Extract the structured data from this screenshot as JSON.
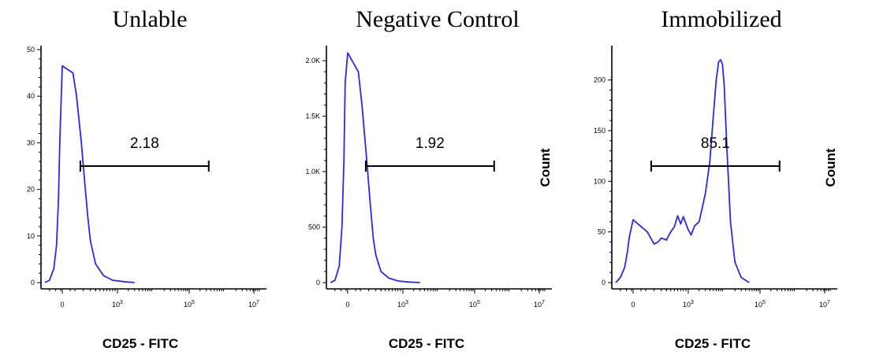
{
  "chart_data": [
    {
      "type": "line",
      "title": "Unlable",
      "xlabel": "CD25 - FITC",
      "ylabel": "",
      "ylim": [
        0,
        50
      ],
      "y_ticks": [
        "0",
        "10",
        "20",
        "30",
        "40",
        "50"
      ],
      "x_ticks": [
        "0",
        "10^3",
        "10^5",
        "10^7"
      ],
      "gate": {
        "label": "2.18",
        "x_from": 70,
        "x_to": 350000
      },
      "series": [
        {
          "x": [
            -500,
            -300,
            -150,
            -80,
            -40,
            -20,
            0,
            20,
            40,
            80,
            120,
            160,
            200,
            300,
            500,
            800,
            1500,
            3000
          ],
          "y": [
            0,
            0.5,
            3,
            8,
            18,
            30,
            46.5,
            45,
            40,
            30,
            21,
            14,
            9,
            4,
            1.5,
            0.5,
            0.2,
            0
          ]
        }
      ]
    },
    {
      "type": "line",
      "title": "Negative Control",
      "xlabel": "CD25 - FITC",
      "ylabel": "Count",
      "ylim": [
        0,
        2100
      ],
      "y_ticks": [
        "0",
        "500",
        "1.0K",
        "1.5K",
        "2.0K"
      ],
      "x_ticks": [
        "0",
        "10^3",
        "10^5",
        "10^7"
      ],
      "gate": {
        "label": "1.92",
        "x_from": 70,
        "x_to": 350000
      },
      "series": [
        {
          "x": [
            -500,
            -300,
            -150,
            -80,
            -40,
            -20,
            0,
            20,
            40,
            80,
            120,
            160,
            200,
            300,
            500,
            800,
            1500,
            3000
          ],
          "y": [
            0,
            20,
            150,
            500,
            1100,
            1800,
            2070,
            1900,
            1600,
            1100,
            700,
            400,
            250,
            100,
            40,
            15,
            5,
            0
          ]
        }
      ]
    },
    {
      "type": "line",
      "title": "Immobilized",
      "xlabel": "CD25 - FITC",
      "ylabel": "Count",
      "ylim": [
        0,
        230
      ],
      "y_ticks": [
        "0",
        "50",
        "100",
        "150",
        "200"
      ],
      "x_ticks": [
        "0",
        "10^3",
        "10^5",
        "10^7"
      ],
      "gate": {
        "label": "85.1",
        "x_from": 70,
        "x_to": 350000
      },
      "series": [
        {
          "x": [
            -500,
            -300,
            -150,
            -80,
            -40,
            0,
            40,
            100,
            150,
            200,
            300,
            400,
            500,
            600,
            700,
            800,
            1000,
            1200,
            1500,
            2000,
            3000,
            4000,
            5000,
            6000,
            7000,
            8000,
            9000,
            10000,
            12000,
            15000,
            20000,
            30000,
            50000
          ],
          "y": [
            0,
            5,
            15,
            30,
            45,
            62,
            50,
            38,
            40,
            44,
            42,
            50,
            55,
            66,
            58,
            65,
            52,
            47,
            56,
            60,
            88,
            120,
            165,
            200,
            218,
            220,
            215,
            195,
            130,
            60,
            20,
            5,
            0
          ]
        }
      ]
    }
  ]
}
